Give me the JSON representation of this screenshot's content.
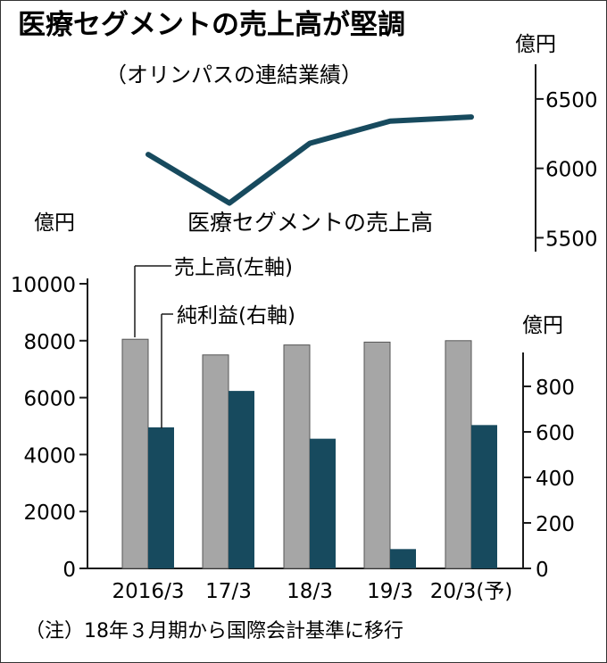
{
  "header": {
    "title": "医療セグメントの売上高が堅調",
    "subtitle": "（オリンパスの連結業績）"
  },
  "footnote": "（注）18年３月期から国際会計基準に移行",
  "colors": {
    "accent": "#174a5e",
    "sales_bar": "#a6a6a6",
    "profit_bar": "#174a5e",
    "text": "#1a1a1a"
  },
  "chart_data": [
    {
      "type": "line",
      "title": "医療セグメントの売上高",
      "unit": "億円",
      "x": [
        "2016/3",
        "17/3",
        "18/3",
        "19/3",
        "20/3(予)"
      ],
      "y_ticks": [
        5500,
        6000,
        6500
      ],
      "ylim": [
        5400,
        6750
      ],
      "series": [
        {
          "values": [
            6100,
            5750,
            6180,
            6340,
            6370
          ]
        }
      ],
      "axis_side": "right",
      "grid": false
    },
    {
      "type": "bar",
      "categories": [
        "2016/3",
        "17/3",
        "18/3",
        "19/3",
        "20/3(予)"
      ],
      "series": [
        {
          "name": "売上高(左軸)",
          "axis": "left",
          "values": [
            8050,
            7500,
            7850,
            7950,
            8000
          ]
        },
        {
          "name": "純利益(右軸)",
          "axis": "right",
          "values": [
            620,
            780,
            570,
            85,
            630
          ]
        }
      ],
      "left_axis": {
        "unit": "億円",
        "ylim": [
          0,
          10000
        ],
        "ticks": [
          0,
          2000,
          4000,
          6000,
          8000,
          10000
        ]
      },
      "right_axis": {
        "unit": "億円",
        "ylim": [
          0,
          1000
        ],
        "ticks": [
          0,
          200,
          400,
          600,
          800
        ]
      },
      "grid": false
    }
  ]
}
